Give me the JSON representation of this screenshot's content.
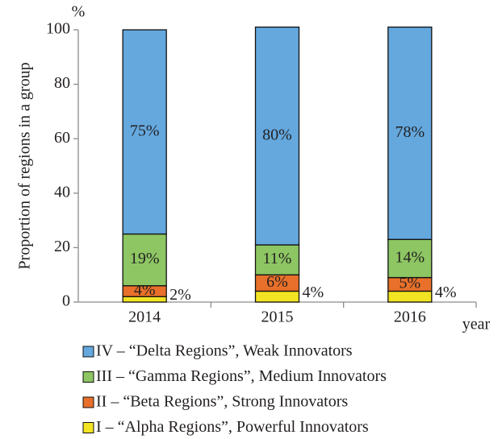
{
  "chart_data": {
    "type": "stacked_bar",
    "y_label": "Proportion of regions in a group",
    "y_unit": "%",
    "x_label": "year",
    "categories": [
      "2014",
      "2015",
      "2016"
    ],
    "series": [
      {
        "name": "I – “Alpha Regions”, Powerful Innovators",
        "color": "#f2e422",
        "values": [
          2,
          4,
          4
        ],
        "value_labels": [
          "2%",
          "4%",
          "4%"
        ]
      },
      {
        "name": "II – “Beta Regions”, Strong Innovators",
        "color": "#e8702a",
        "values": [
          4,
          6,
          5
        ],
        "value_labels": [
          "4%",
          "6%",
          "5%"
        ]
      },
      {
        "name": "III – “Gamma Regions”, Medium Innovators",
        "color": "#8dc663",
        "values": [
          19,
          11,
          14
        ],
        "value_labels": [
          "19%",
          "11%",
          "14%"
        ]
      },
      {
        "name": "IV – “Delta Regions”, Weak Innovators",
        "color": "#64a8de",
        "values": [
          75,
          80,
          78
        ],
        "value_labels": [
          "75%",
          "80%",
          "78%"
        ]
      }
    ],
    "ylim": [
      0,
      100
    ],
    "yticks": [
      0,
      20,
      40,
      60,
      80,
      100
    ],
    "grid": false
  }
}
